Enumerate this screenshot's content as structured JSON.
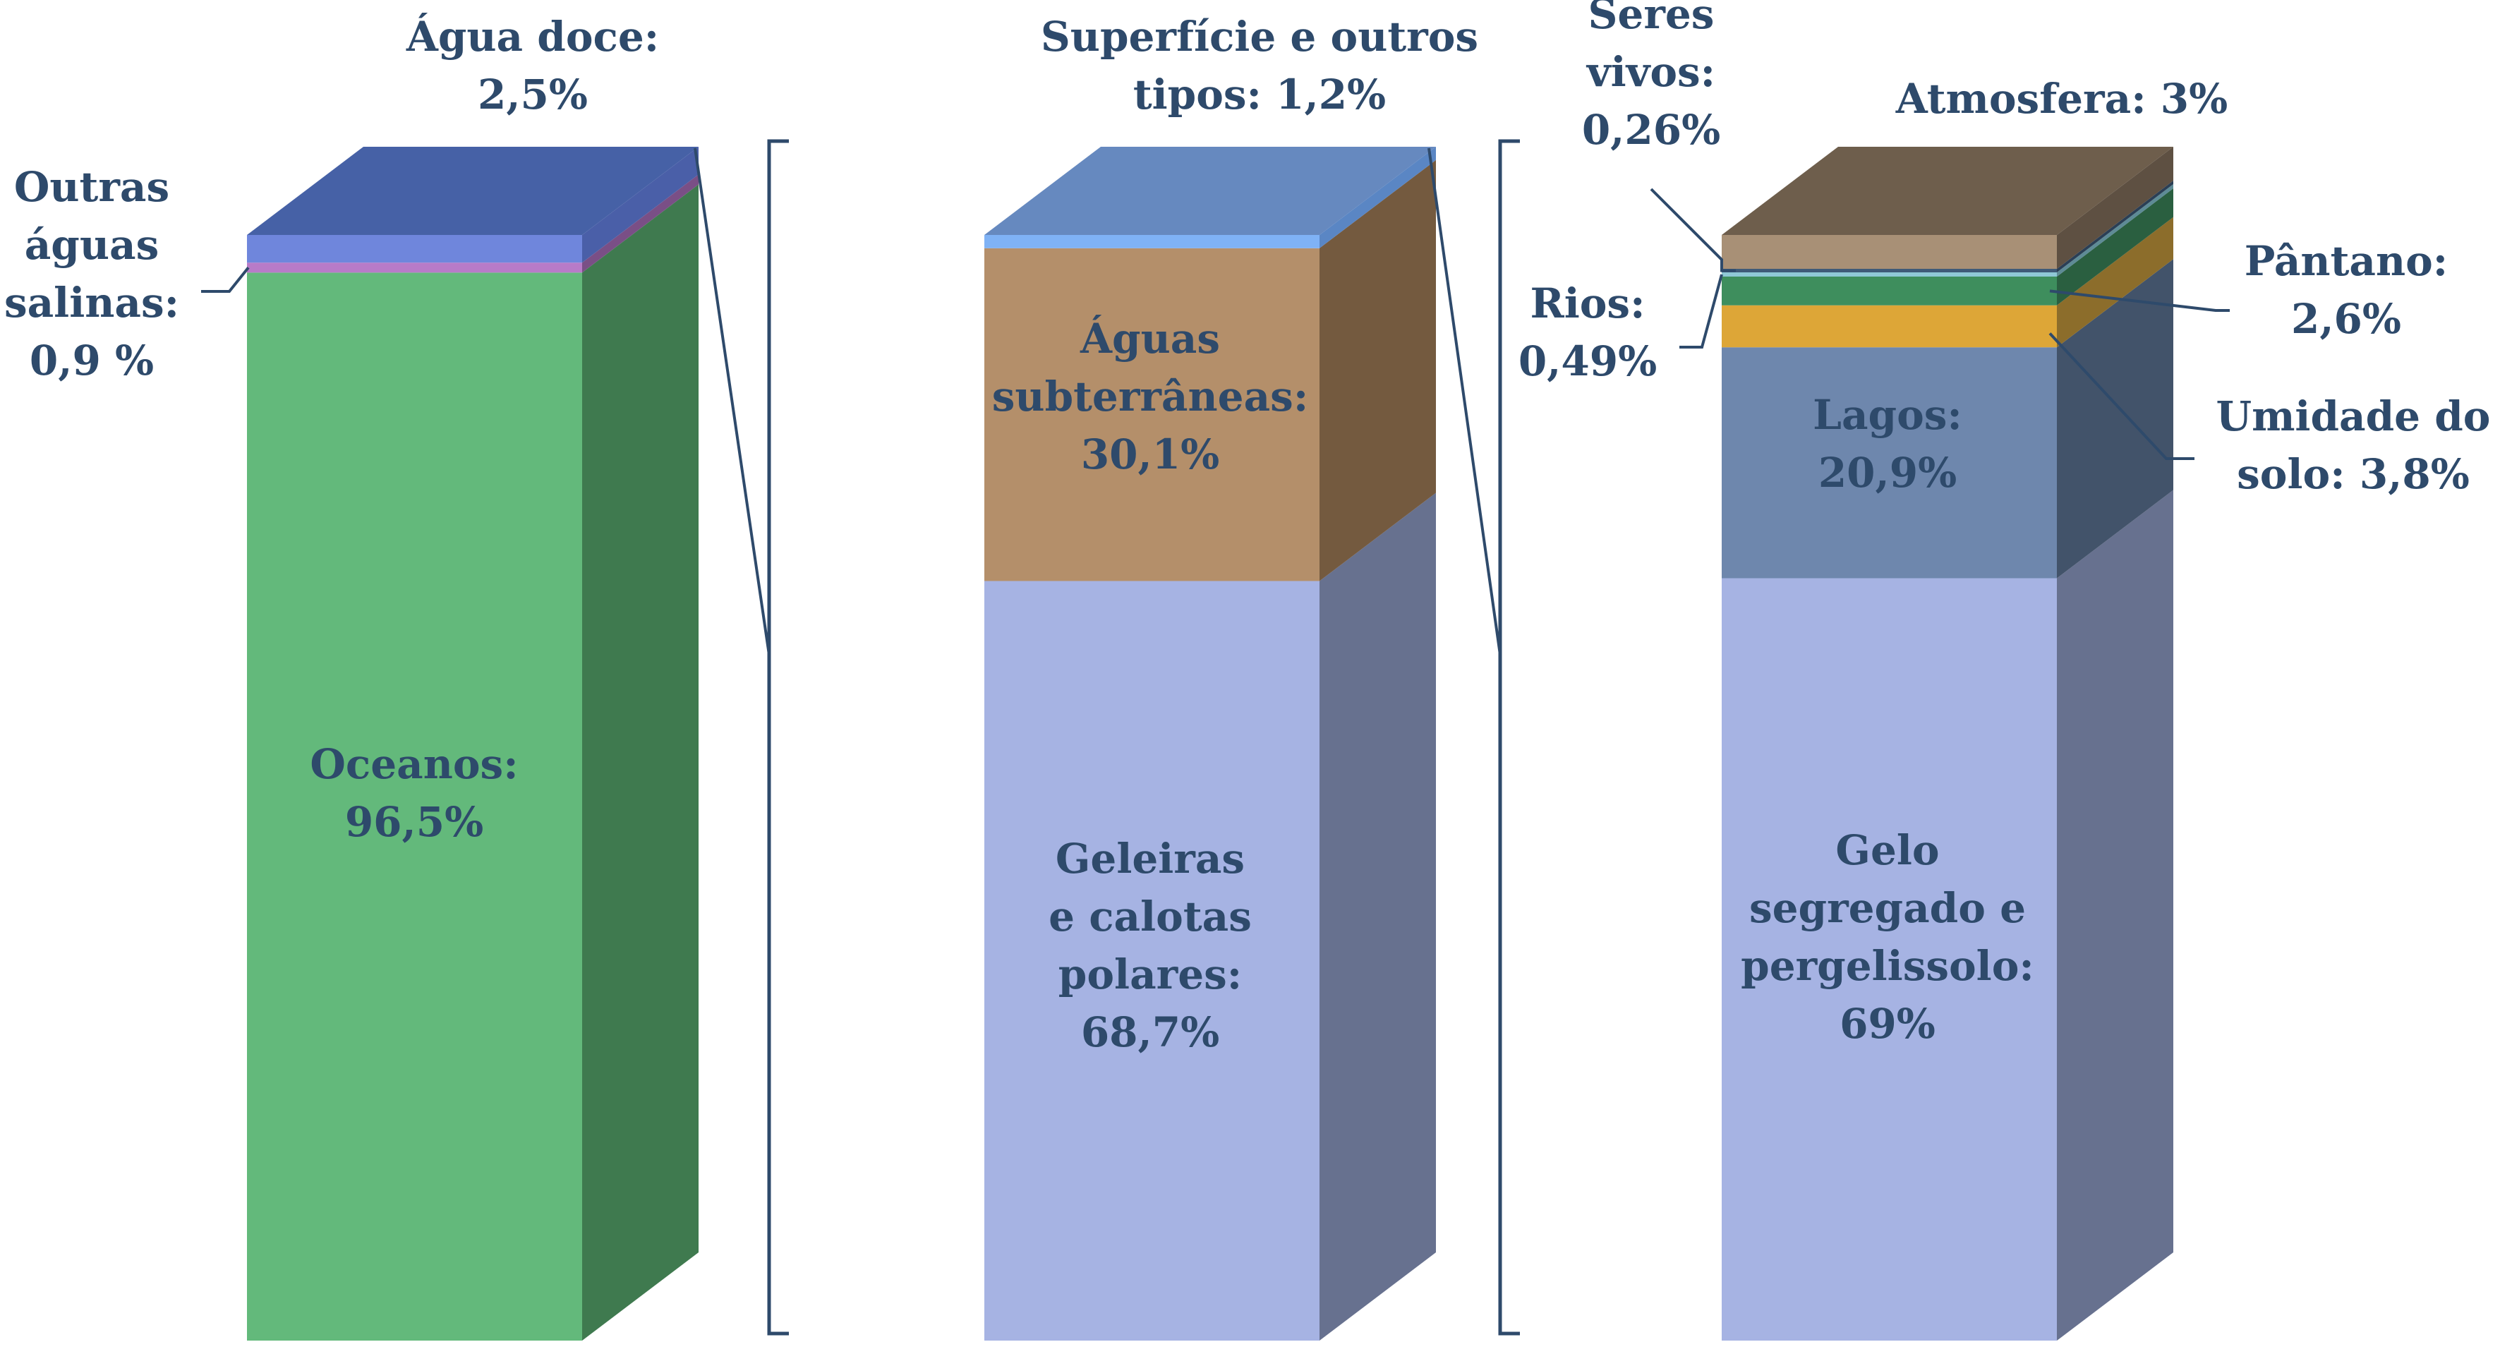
{
  "chart_data": {
    "type": "stacked-3d-bar",
    "title": "",
    "columns": [
      {
        "name": "",
        "segments": [
          {
            "key": "oceanos",
            "label": "Oceanos:",
            "value_label": "96,5%",
            "value": 96.5,
            "color": "#63b97b",
            "side_color": "#3f7a4f"
          },
          {
            "key": "outras_salinas",
            "label": "Outras águas salinas:",
            "value_label": "0,9 %",
            "value": 0.9,
            "color": "#b87bc8",
            "side_color": "#7a4f86"
          },
          {
            "key": "agua_doce",
            "label": "Água doce:",
            "value_label": "2,5%",
            "value": 2.5,
            "color": "#6f86dc",
            "side_color": "#4a5fa8",
            "top_color": "#4661a6"
          }
        ]
      },
      {
        "name": "",
        "segments": [
          {
            "key": "geleiras",
            "label": "Geleiras e calotas polares:",
            "value_label": "68,7%",
            "value": 68.7,
            "color": "#a6b3e3",
            "side_color": "#67718f"
          },
          {
            "key": "subterraneas",
            "label": "Águas subterrâneas:",
            "value_label": "30,1%",
            "value": 30.1,
            "color": "#b48f6a",
            "side_color": "#745a3f"
          },
          {
            "key": "superficie",
            "label": "Superfície e outros tipos:",
            "value_label": "1,2%",
            "value": 1.2,
            "color": "#7fb2f5",
            "side_color": "#5a86c4",
            "top_color": "#6689bf"
          }
        ]
      },
      {
        "name": "",
        "segments": [
          {
            "key": "gelo",
            "label": "Gelo segregado e pergelissolo:",
            "value_label": "69%",
            "value": 69,
            "color": "#a6b3e3",
            "side_color": "#67718f"
          },
          {
            "key": "lagos",
            "label": "Lagos:",
            "value_label": "20,9%",
            "value": 20.9,
            "color": "#6e87ad",
            "side_color": "#42536a"
          },
          {
            "key": "umidade",
            "label": "Umidade do solo:",
            "value_label": "3,8%",
            "value": 3.8,
            "color": "#dda637",
            "side_color": "#8c6d2b"
          },
          {
            "key": "pantano",
            "label": "Pântano:",
            "value_label": "2,6%",
            "value": 2.6,
            "color": "#3e8e5d",
            "side_color": "#2a5f40"
          },
          {
            "key": "rios",
            "label": "Rios:",
            "value_label": "0,49%",
            "value": 0.49,
            "color": "#8fc8d6",
            "side_color": "#5e8b96"
          },
          {
            "key": "seres_vivos",
            "label": "Seres vivos:",
            "value_label": "0,26%",
            "value": 0.26,
            "color": "#3f5a78",
            "side_color": "#2b3f55"
          },
          {
            "key": "atmosfera",
            "label": "Atmosfera: 3%",
            "value_label": "3%",
            "value": 3,
            "color": "#a89076",
            "side_color": "#5e5042",
            "top_color": "#6e5e4c"
          }
        ]
      }
    ],
    "annotations": {
      "oceanos": [
        "Oceanos:",
        "96,5%"
      ],
      "outras_salinas": [
        "Outras",
        "águas",
        "salinas:",
        "0,9 %"
      ],
      "agua_doce": [
        "Água doce:",
        "2,5%"
      ],
      "geleiras": [
        "Geleiras",
        "e calotas",
        "polares:",
        "68,7%"
      ],
      "subterraneas": [
        "Águas",
        "subterrâneas:",
        "30,1%"
      ],
      "superficie": [
        "Superfície e outros",
        "tipos: 1,2%"
      ],
      "gelo": [
        "Gelo",
        "segregado e",
        "pergelissolo:",
        "69%"
      ],
      "lagos": [
        "Lagos:",
        "20,9%"
      ],
      "seres_vivos": [
        "Seres",
        "vivos:",
        "0,26%"
      ],
      "atmosfera": [
        "Atmosfera: 3%"
      ],
      "pantano": [
        "Pântano:",
        "2,6%"
      ],
      "umidade": [
        "Umidade do",
        "solo: 3,8%"
      ],
      "rios": [
        "Rios:",
        "0,49%"
      ]
    },
    "colors": {
      "label_text": "#2e4a6b",
      "connector": "#2e4a6b"
    }
  }
}
